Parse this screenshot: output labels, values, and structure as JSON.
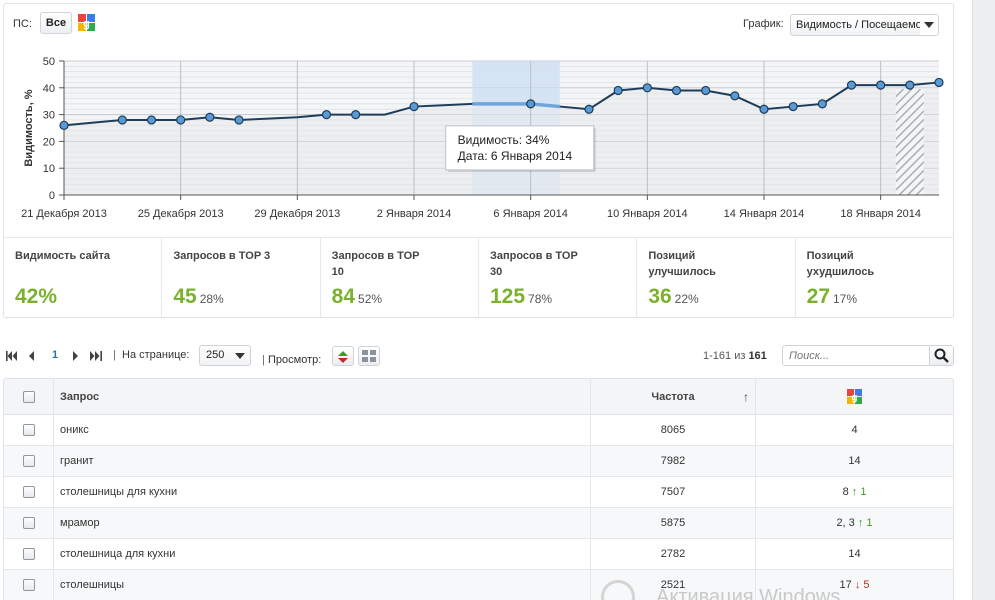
{
  "toolbar": {
    "ps_label": "ПС:",
    "ps_all": "Все",
    "ps_engine_icon": "google-icon",
    "graph_label": "График:",
    "graph_select_value": "Видимость / Посещаемо"
  },
  "chart_data": {
    "type": "line",
    "ylabel": "Видимость, %",
    "ylim": [
      0,
      50
    ],
    "yticks": [
      "0",
      "10",
      "20",
      "30",
      "40",
      "50"
    ],
    "x_tick_labels": [
      "21 Декабря 2013",
      "25 Декабря 2013",
      "29 Декабря 2013",
      "2 Января 2014",
      "6 Января 2014",
      "10 Января 2014",
      "14 Января 2014",
      "18 Января 2014"
    ],
    "x": [
      "21.12.2013",
      "22.12.2013",
      "23.12.2013",
      "24.12.2013",
      "25.12.2013",
      "26.12.2013",
      "27.12.2013",
      "28.12.2013",
      "29.12.2013",
      "30.12.2013",
      "31.12.2013",
      "01.01.2014",
      "02.01.2014",
      "03.01.2014",
      "04.01.2014",
      "05.01.2014",
      "06.01.2014",
      "07.01.2014",
      "08.01.2014",
      "09.01.2014",
      "10.01.2014",
      "11.01.2014",
      "12.01.2014",
      "13.01.2014",
      "14.01.2014",
      "15.01.2014",
      "16.01.2014",
      "17.01.2014",
      "18.01.2014",
      "19.01.2014",
      "20.01.2014"
    ],
    "series": [
      {
        "values": [
          26,
          27,
          28,
          28,
          28,
          29,
          28,
          28.5,
          29,
          30,
          30,
          30,
          33,
          33.5,
          34,
          34,
          34,
          33,
          32,
          39,
          40,
          39,
          39,
          37,
          32,
          33,
          34,
          41,
          41,
          41,
          42
        ],
        "markers": [
          true,
          false,
          true,
          true,
          true,
          true,
          true,
          false,
          false,
          true,
          true,
          false,
          true,
          false,
          false,
          false,
          true,
          false,
          true,
          true,
          true,
          true,
          true,
          true,
          true,
          true,
          true,
          true,
          true,
          true,
          true
        ]
      }
    ],
    "highlight_date": "06.01.2014",
    "tooltip": {
      "line1": "Видимость: 34%",
      "line2": "Дата: 6 Января 2014"
    },
    "grid": true,
    "hatched_last_period": true,
    "colors": {
      "line": "#1f3d5a",
      "fill": "#e8ebee",
      "marker": "#5b9bd5",
      "highlight": "#d4e4f5",
      "highlight_line": "#6ea6dc"
    }
  },
  "stats": [
    {
      "title": "Видимость сайта",
      "value": "42%",
      "pct": ""
    },
    {
      "title": "Запросов в TOP 3",
      "value": "45",
      "pct": "28%"
    },
    {
      "title": "Запросов в TOP 10",
      "value": "84",
      "pct": "52%"
    },
    {
      "title": "Запросов в TOP 30",
      "value": "125",
      "pct": "78%"
    },
    {
      "title": "Позиций улучшилось",
      "value": "36",
      "pct": "22%"
    },
    {
      "title": "Позиций ухудшилось",
      "value": "27",
      "pct": "17%"
    }
  ],
  "pager": {
    "current_page": "1",
    "sep": "|",
    "per_page_label": "На странице:",
    "per_page_value": "250",
    "view_label": "Просмотр:",
    "range_text": "1-161 из ",
    "range_total": "161",
    "search_placeholder": "Поиск..."
  },
  "table": {
    "headers": {
      "query": "Запрос",
      "frequency": "Частота",
      "sort_arrow": "↑",
      "engine_icon": "google-icon"
    },
    "rows": [
      {
        "query": "оникс",
        "frequency": "8065",
        "position": "4",
        "arrow": "",
        "change": "",
        "dir": ""
      },
      {
        "query": "гранит",
        "frequency": "7982",
        "position": "14",
        "arrow": "",
        "change": "",
        "dir": ""
      },
      {
        "query": "столешницы для кухни",
        "frequency": "7507",
        "position": "8",
        "arrow": "↑",
        "change": "1",
        "dir": "up"
      },
      {
        "query": "мрамор",
        "frequency": "5875",
        "position": "2, 3",
        "arrow": "↑",
        "change": "1",
        "dir": "up"
      },
      {
        "query": "столешница для кухни",
        "frequency": "2782",
        "position": "14",
        "arrow": "",
        "change": "",
        "dir": ""
      },
      {
        "query": "столешницы",
        "frequency": "2521",
        "position": "17",
        "arrow": "↓",
        "change": "5",
        "dir": "down"
      }
    ]
  },
  "watermark": {
    "text": "Активация Windows"
  }
}
